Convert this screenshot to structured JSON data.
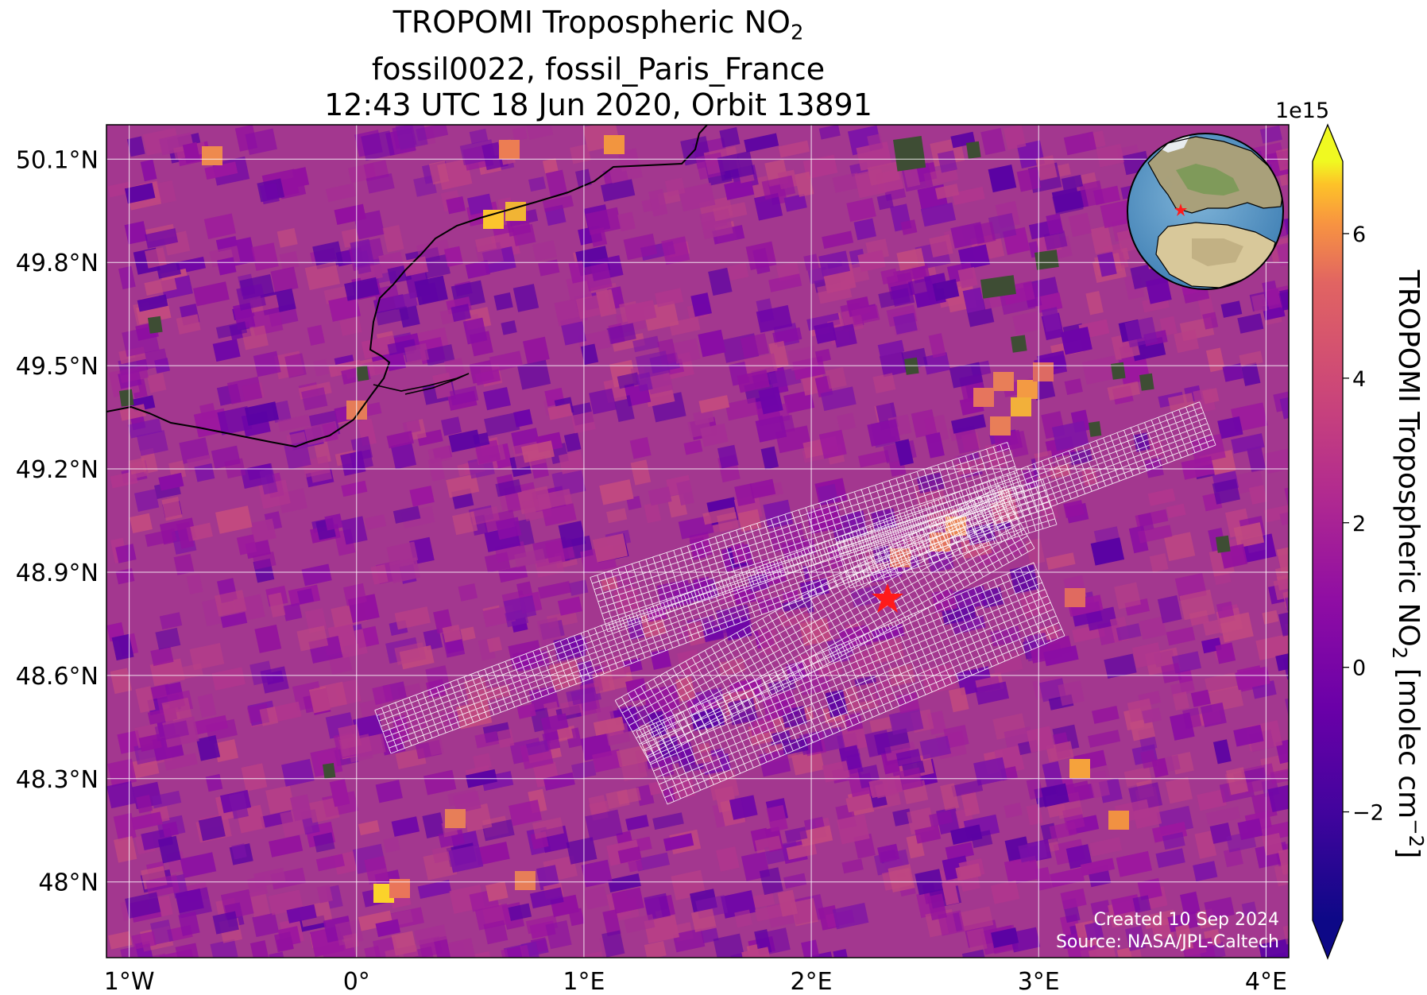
{
  "title": {
    "line1_prefix": "TROPOMI Tropospheric NO",
    "line1_sub": "2",
    "line2": "fossil0022, fossil_Paris_France",
    "line3": "12:43 UTC 18 Jun 2020, Orbit 13891"
  },
  "map": {
    "lon_range": [
      -1.1,
      4.1
    ],
    "lat_range": [
      47.78,
      50.2
    ],
    "lon_ticks": [
      {
        "value": -1,
        "label": "1°W"
      },
      {
        "value": 0,
        "label": "0°"
      },
      {
        "value": 1,
        "label": "1°E"
      },
      {
        "value": 2,
        "label": "2°E"
      },
      {
        "value": 3,
        "label": "3°E"
      },
      {
        "value": 4,
        "label": "4°E"
      }
    ],
    "lat_ticks": [
      {
        "value": 50.1,
        "label": "50.1°N"
      },
      {
        "value": 49.8,
        "label": "49.8°N"
      },
      {
        "value": 49.5,
        "label": "49.5°N"
      },
      {
        "value": 49.2,
        "label": "49.2°N"
      },
      {
        "value": 48.9,
        "label": "48.9°N"
      },
      {
        "value": 48.6,
        "label": "48.6°N"
      },
      {
        "value": 48.3,
        "label": "48.3°N"
      },
      {
        "value": 48.0,
        "label": "48°N"
      }
    ],
    "gridlines": true,
    "target": {
      "name": "fossil_Paris_France",
      "lon": 2.35,
      "lat": 48.86,
      "marker": "star",
      "color": "#ff0000"
    },
    "background_color": "#a3378f",
    "overlay": "OCO-3 footprint grid",
    "inset": {
      "type": "globe",
      "placement": "top-right",
      "marker_color": "#ff0000"
    }
  },
  "colorbar": {
    "label_prefix": "TROPOMI Tropospheric NO",
    "label_sub": "2",
    "label_units_prefix": " [molec cm",
    "label_units_sup": "−2",
    "label_units_suffix": "]",
    "exponent": "1e15",
    "range": [
      -3.5,
      7
    ],
    "ticks": [
      {
        "value": -2,
        "label": "−2"
      },
      {
        "value": 0,
        "label": "0"
      },
      {
        "value": 2,
        "label": "2"
      },
      {
        "value": 4,
        "label": "4"
      },
      {
        "value": 6,
        "label": "6"
      }
    ],
    "colormap": "plasma",
    "extend": "both"
  },
  "credits": {
    "line1": "Created 10 Sep 2024",
    "line2": "Source: NASA/JPL-Caltech"
  }
}
